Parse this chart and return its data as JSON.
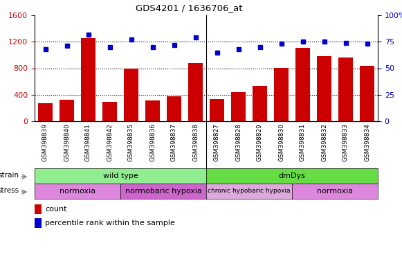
{
  "title": "GDS4201 / 1636706_at",
  "samples": [
    "GSM398839",
    "GSM398840",
    "GSM398841",
    "GSM398842",
    "GSM398835",
    "GSM398836",
    "GSM398837",
    "GSM398838",
    "GSM398827",
    "GSM398828",
    "GSM398829",
    "GSM398830",
    "GSM398831",
    "GSM398832",
    "GSM398833",
    "GSM398834"
  ],
  "counts": [
    270,
    320,
    1260,
    290,
    800,
    310,
    380,
    880,
    330,
    440,
    530,
    810,
    1110,
    980,
    960,
    840
  ],
  "percentile": [
    68,
    71,
    82,
    70,
    77,
    70,
    72,
    79,
    65,
    68,
    70,
    73,
    75,
    75,
    74,
    73
  ],
  "bar_color": "#cc0000",
  "dot_color": "#0000cc",
  "ylim_left": [
    0,
    1600
  ],
  "ylim_right": [
    0,
    100
  ],
  "yticks_left": [
    0,
    400,
    800,
    1200,
    1600
  ],
  "yticks_right": [
    0,
    25,
    50,
    75,
    100
  ],
  "yticklabels_right": [
    "0",
    "25",
    "50",
    "75",
    "100%"
  ],
  "strain_groups": [
    {
      "label": "wild type",
      "start": 0,
      "end": 8,
      "color": "#90ee90"
    },
    {
      "label": "dmDys",
      "start": 8,
      "end": 16,
      "color": "#66dd44"
    }
  ],
  "stress_groups": [
    {
      "label": "normoxia",
      "start": 0,
      "end": 4,
      "color": "#dd88dd"
    },
    {
      "label": "normobaric hypoxia",
      "start": 4,
      "end": 8,
      "color": "#cc66cc"
    },
    {
      "label": "chronic hypobaric hypoxia",
      "start": 8,
      "end": 12,
      "color": "#ddaadd"
    },
    {
      "label": "normoxia",
      "start": 12,
      "end": 16,
      "color": "#dd88dd"
    }
  ],
  "strain_label": "strain",
  "stress_label": "stress",
  "legend_count_label": "count",
  "legend_pct_label": "percentile rank within the sample",
  "xticklabel_bg": "#cccccc",
  "separator_col": 7.5,
  "plot_bg": "#ffffff"
}
